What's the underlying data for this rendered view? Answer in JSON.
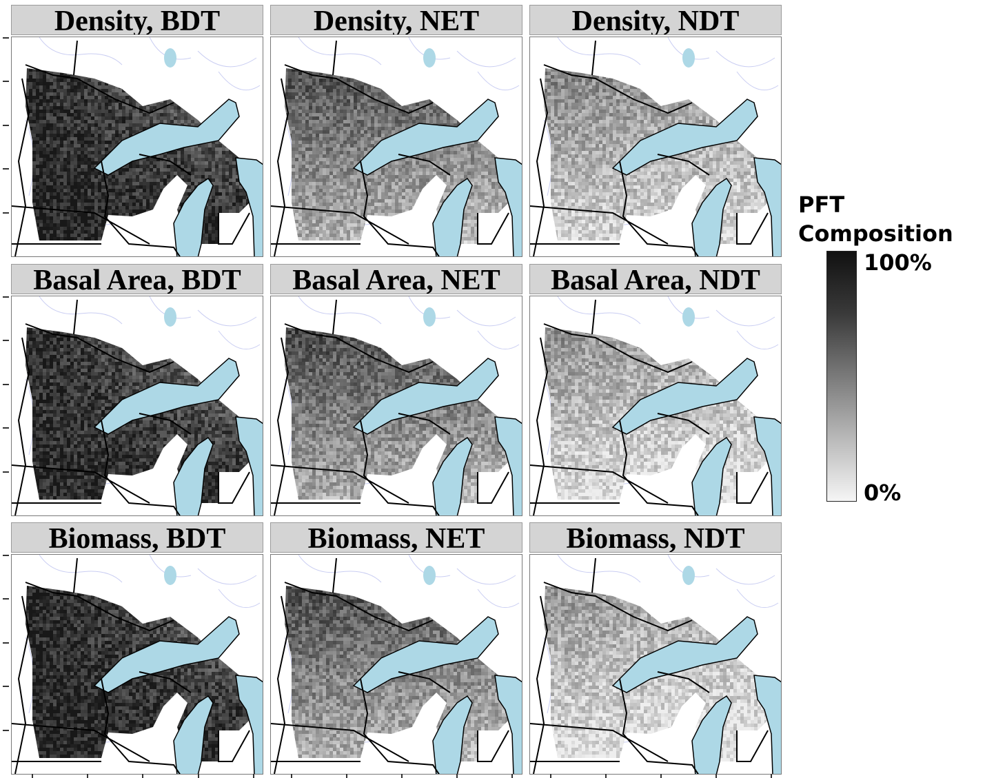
{
  "figure": {
    "panels": [
      {
        "title": "Density, BDT",
        "variable": "Density",
        "pft": "BDT",
        "intensity": 0.92
      },
      {
        "title": "Density, NET",
        "variable": "Density",
        "pft": "NET",
        "intensity": 0.72
      },
      {
        "title": "Density, NDT",
        "variable": "Density",
        "pft": "NDT",
        "intensity": 0.35
      },
      {
        "title": "Basal Area, BDT",
        "variable": "Basal Area",
        "pft": "BDT",
        "intensity": 0.9
      },
      {
        "title": "Basal Area, NET",
        "variable": "Basal Area",
        "pft": "NET",
        "intensity": 0.74
      },
      {
        "title": "Basal Area, NDT",
        "variable": "Basal Area",
        "pft": "NDT",
        "intensity": 0.3
      },
      {
        "title": "Biomass, BDT",
        "variable": "Biomass",
        "pft": "BDT",
        "intensity": 0.93
      },
      {
        "title": "Biomass, NET",
        "variable": "Biomass",
        "pft": "NET",
        "intensity": 0.73
      },
      {
        "title": "Biomass, NDT",
        "variable": "Biomass",
        "pft": "NDT",
        "intensity": 0.28
      }
    ]
  },
  "legend": {
    "title_line1": "PFT",
    "title_line2": "Composition",
    "max_label": "100%",
    "min_label": "0%",
    "colors": {
      "high": "#111111",
      "low": "#f5f5f5"
    }
  },
  "colors": {
    "water": "#add8e6",
    "rivers": "#c9cdf2",
    "borders": "#000000",
    "strip_background": "#d4d4d4"
  }
}
